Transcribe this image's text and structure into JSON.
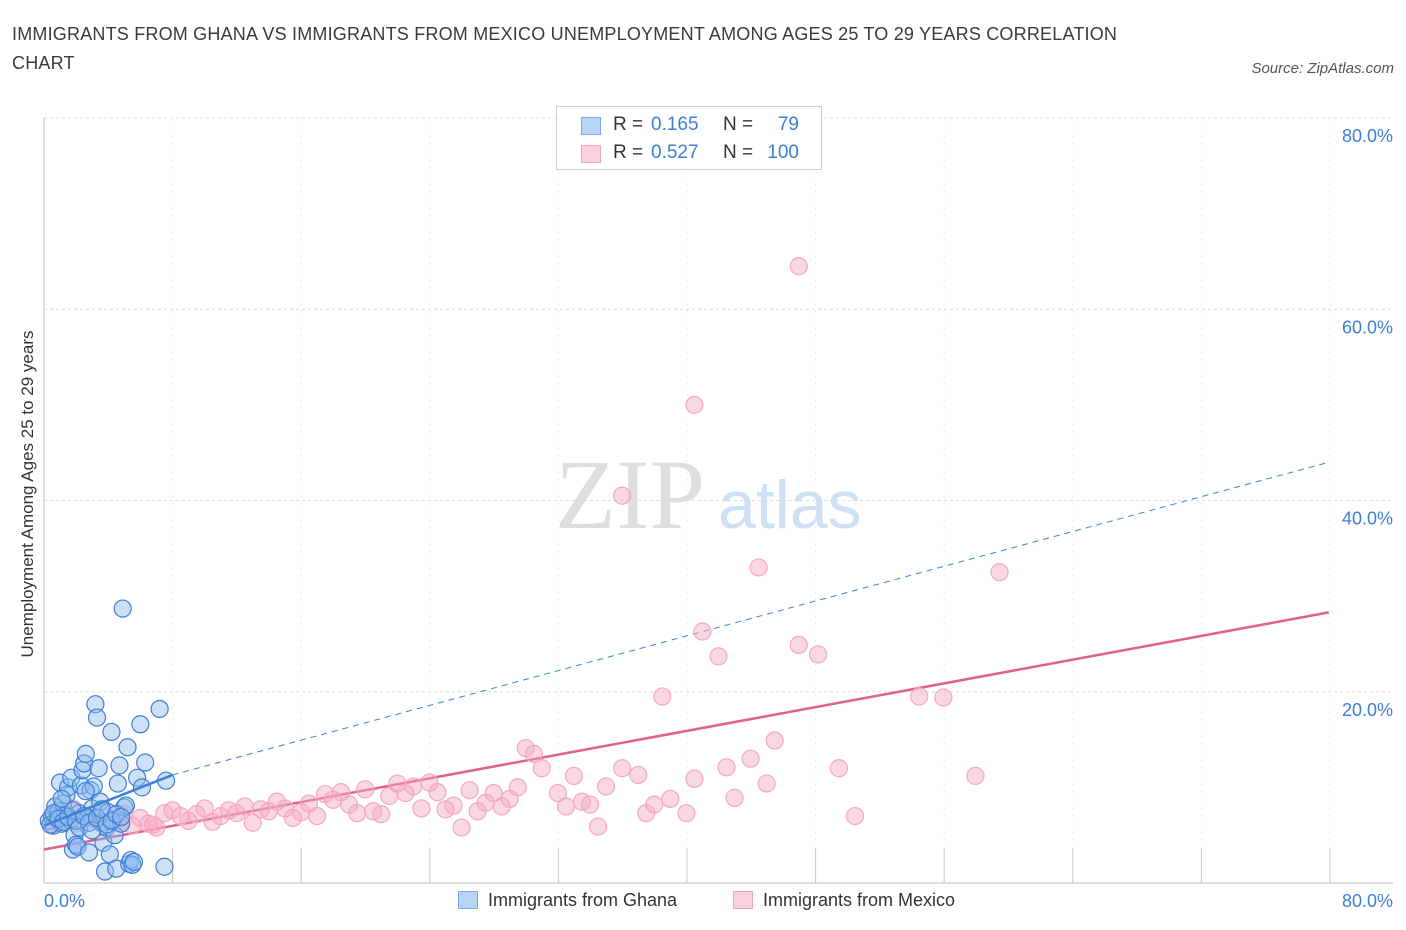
{
  "title": "IMMIGRANTS FROM GHANA VS IMMIGRANTS FROM MEXICO UNEMPLOYMENT AMONG AGES 25 TO 29 YEARS CORRELATION CHART",
  "source": "Source: ZipAtlas.com",
  "watermark": {
    "zip": "ZIP",
    "atlas": "atlas"
  },
  "legend": {
    "rows": [
      {
        "r_label": "R =",
        "r_value": "0.165",
        "n_label": "N =",
        "n_value": "79"
      },
      {
        "r_label": "R =",
        "r_value": "0.527",
        "n_label": "N =",
        "n_value": "100"
      }
    ]
  },
  "bottom_legend": {
    "ghana": "Immigrants from Ghana",
    "mexico": "Immigrants from Mexico"
  },
  "colors": {
    "ghana": "#8fbcf0",
    "ghana_line": "#3f7fd6",
    "mexico": "#f4a8c0",
    "mexico_line": "#e0608c",
    "axis_text": "#3d7fd6"
  },
  "chart_data": {
    "type": "scatter",
    "title": "IMMIGRANTS FROM GHANA VS IMMIGRANTS FROM MEXICO UNEMPLOYMENT AMONG AGES 25 TO 29 YEARS CORRELATION CHART",
    "xlabel": "",
    "ylabel": "Unemployment Among Ages 25 to 29 years",
    "xlim": [
      0,
      84
    ],
    "ylim": [
      0,
      80
    ],
    "x_tick_labels": [
      "0.0%",
      "80.0%"
    ],
    "y_ticks": [
      20,
      40,
      60,
      80
    ],
    "y_tick_labels": [
      "20.0%",
      "40.0%",
      "60.0%",
      "80.0%"
    ],
    "series": [
      {
        "name": "Immigrants from Ghana",
        "r": 0.165,
        "n": 79,
        "trend": {
          "x": [
            0,
            8
          ],
          "y": [
            6.0,
            11.3
          ],
          "dashed_extension": {
            "x": [
              8,
              80
            ],
            "y": [
              11.3,
              44.0
            ]
          }
        },
        "points": [
          [
            0.3,
            6.5
          ],
          [
            0.5,
            7.0
          ],
          [
            0.6,
            6.0
          ],
          [
            0.7,
            8.0
          ],
          [
            0.8,
            6.8
          ],
          [
            0.9,
            7.5
          ],
          [
            1.0,
            10.5
          ],
          [
            1.1,
            6.2
          ],
          [
            1.2,
            8.3
          ],
          [
            1.3,
            7.1
          ],
          [
            1.4,
            9.2
          ],
          [
            1.5,
            10.0
          ],
          [
            1.6,
            6.6
          ],
          [
            1.7,
            11.0
          ],
          [
            1.8,
            3.5
          ],
          [
            1.9,
            5.0
          ],
          [
            2.0,
            4.0
          ],
          [
            2.1,
            3.8
          ],
          [
            2.2,
            7.3
          ],
          [
            2.3,
            10.2
          ],
          [
            2.4,
            11.8
          ],
          [
            2.5,
            12.5
          ],
          [
            2.6,
            13.5
          ],
          [
            2.7,
            6.9
          ],
          [
            2.8,
            3.2
          ],
          [
            2.9,
            9.7
          ],
          [
            3.0,
            7.8
          ],
          [
            3.1,
            10.1
          ],
          [
            3.2,
            18.7
          ],
          [
            3.3,
            17.3
          ],
          [
            3.4,
            12.0
          ],
          [
            3.5,
            8.5
          ],
          [
            3.6,
            6.3
          ],
          [
            3.7,
            4.2
          ],
          [
            3.8,
            1.2
          ],
          [
            3.9,
            5.8
          ],
          [
            4.0,
            7.4
          ],
          [
            4.1,
            3.0
          ],
          [
            4.2,
            15.8
          ],
          [
            4.3,
            6.6
          ],
          [
            4.4,
            5.0
          ],
          [
            4.5,
            1.5
          ],
          [
            4.6,
            10.4
          ],
          [
            4.7,
            12.3
          ],
          [
            4.8,
            6.2
          ],
          [
            4.9,
            28.7
          ],
          [
            5.0,
            7.9
          ],
          [
            5.1,
            8.1
          ],
          [
            5.2,
            14.2
          ],
          [
            5.3,
            2.0
          ],
          [
            5.4,
            2.4
          ],
          [
            5.5,
            1.9
          ],
          [
            5.6,
            2.2
          ],
          [
            5.8,
            11.0
          ],
          [
            6.0,
            16.6
          ],
          [
            6.1,
            10.0
          ],
          [
            6.3,
            12.6
          ],
          [
            7.2,
            18.2
          ],
          [
            7.5,
            1.7
          ],
          [
            7.6,
            10.7
          ],
          [
            0.4,
            6.1
          ],
          [
            0.6,
            7.3
          ],
          [
            0.9,
            6.7
          ],
          [
            1.2,
            6.4
          ],
          [
            1.5,
            6.9
          ],
          [
            1.8,
            7.6
          ],
          [
            2.0,
            6.5
          ],
          [
            2.2,
            5.8
          ],
          [
            2.5,
            7.0
          ],
          [
            2.8,
            6.3
          ],
          [
            3.0,
            5.5
          ],
          [
            3.3,
            6.8
          ],
          [
            3.6,
            7.7
          ],
          [
            3.9,
            6.1
          ],
          [
            4.2,
            6.5
          ],
          [
            4.5,
            7.2
          ],
          [
            4.8,
            6.9
          ],
          [
            1.1,
            8.8
          ],
          [
            2.6,
            9.6
          ]
        ]
      },
      {
        "name": "Immigrants from Mexico",
        "r": 0.527,
        "n": 100,
        "trend": {
          "x": [
            0,
            80
          ],
          "y": [
            3.5,
            28.3
          ]
        },
        "points": [
          [
            0.5,
            6.0
          ],
          [
            1.0,
            6.5
          ],
          [
            1.5,
            7.0
          ],
          [
            2.0,
            6.2
          ],
          [
            2.5,
            6.8
          ],
          [
            3.0,
            7.1
          ],
          [
            3.5,
            6.3
          ],
          [
            4.0,
            6.9
          ],
          [
            4.5,
            6.5
          ],
          [
            5.0,
            7.2
          ],
          [
            5.5,
            6.0
          ],
          [
            6.0,
            6.8
          ],
          [
            6.5,
            6.2
          ],
          [
            7.0,
            5.8
          ],
          [
            7.5,
            7.3
          ],
          [
            8.0,
            7.6
          ],
          [
            8.5,
            7.0
          ],
          [
            9.0,
            6.5
          ],
          [
            9.5,
            7.2
          ],
          [
            10.0,
            7.8
          ],
          [
            10.5,
            6.4
          ],
          [
            11.0,
            7.0
          ],
          [
            11.5,
            7.6
          ],
          [
            12.0,
            7.3
          ],
          [
            12.5,
            8.0
          ],
          [
            13.0,
            6.3
          ],
          [
            13.5,
            7.7
          ],
          [
            14.0,
            7.5
          ],
          [
            14.5,
            8.5
          ],
          [
            15.0,
            7.8
          ],
          [
            15.5,
            6.8
          ],
          [
            16.0,
            7.4
          ],
          [
            16.5,
            8.3
          ],
          [
            17.0,
            7.0
          ],
          [
            17.5,
            9.3
          ],
          [
            18.0,
            8.7
          ],
          [
            18.5,
            9.5
          ],
          [
            19.0,
            8.2
          ],
          [
            19.5,
            7.3
          ],
          [
            20.0,
            9.8
          ],
          [
            20.5,
            7.5
          ],
          [
            21.0,
            7.2
          ],
          [
            21.5,
            9.1
          ],
          [
            22.0,
            10.4
          ],
          [
            22.5,
            9.4
          ],
          [
            23.0,
            10.1
          ],
          [
            23.5,
            7.8
          ],
          [
            24.0,
            10.5
          ],
          [
            24.5,
            9.5
          ],
          [
            25.0,
            7.7
          ],
          [
            25.5,
            8.1
          ],
          [
            26.0,
            5.8
          ],
          [
            26.5,
            9.7
          ],
          [
            27.0,
            7.5
          ],
          [
            27.5,
            8.4
          ],
          [
            28.0,
            9.4
          ],
          [
            28.5,
            8.0
          ],
          [
            29.0,
            8.8
          ],
          [
            29.5,
            10.0
          ],
          [
            30.0,
            14.1
          ],
          [
            30.5,
            13.5
          ],
          [
            31.0,
            12.0
          ],
          [
            32.0,
            9.4
          ],
          [
            32.5,
            8.0
          ],
          [
            33.0,
            11.2
          ],
          [
            33.5,
            8.5
          ],
          [
            34.0,
            8.2
          ],
          [
            34.5,
            5.9
          ],
          [
            35.0,
            10.1
          ],
          [
            36.0,
            12.0
          ],
          [
            37.0,
            11.3
          ],
          [
            37.5,
            7.3
          ],
          [
            38.0,
            8.2
          ],
          [
            38.5,
            19.5
          ],
          [
            39.0,
            8.8
          ],
          [
            40.0,
            7.3
          ],
          [
            40.5,
            10.9
          ],
          [
            41.0,
            26.3
          ],
          [
            42.0,
            23.7
          ],
          [
            42.5,
            12.1
          ],
          [
            43.0,
            8.9
          ],
          [
            44.0,
            13.0
          ],
          [
            44.5,
            33.0
          ],
          [
            45.0,
            10.4
          ],
          [
            45.5,
            14.9
          ],
          [
            47.0,
            24.9
          ],
          [
            48.2,
            23.9
          ],
          [
            49.5,
            12.0
          ],
          [
            50.5,
            7.0
          ],
          [
            54.5,
            19.5
          ],
          [
            56.0,
            19.4
          ],
          [
            58.0,
            11.2
          ],
          [
            59.5,
            32.5
          ],
          [
            40.5,
            50.0
          ],
          [
            47.0,
            64.5
          ],
          [
            36.0,
            40.5
          ],
          [
            1.8,
            7.8
          ],
          [
            3.2,
            6.6
          ],
          [
            4.8,
            6.4
          ],
          [
            6.8,
            6.1
          ]
        ]
      }
    ]
  }
}
